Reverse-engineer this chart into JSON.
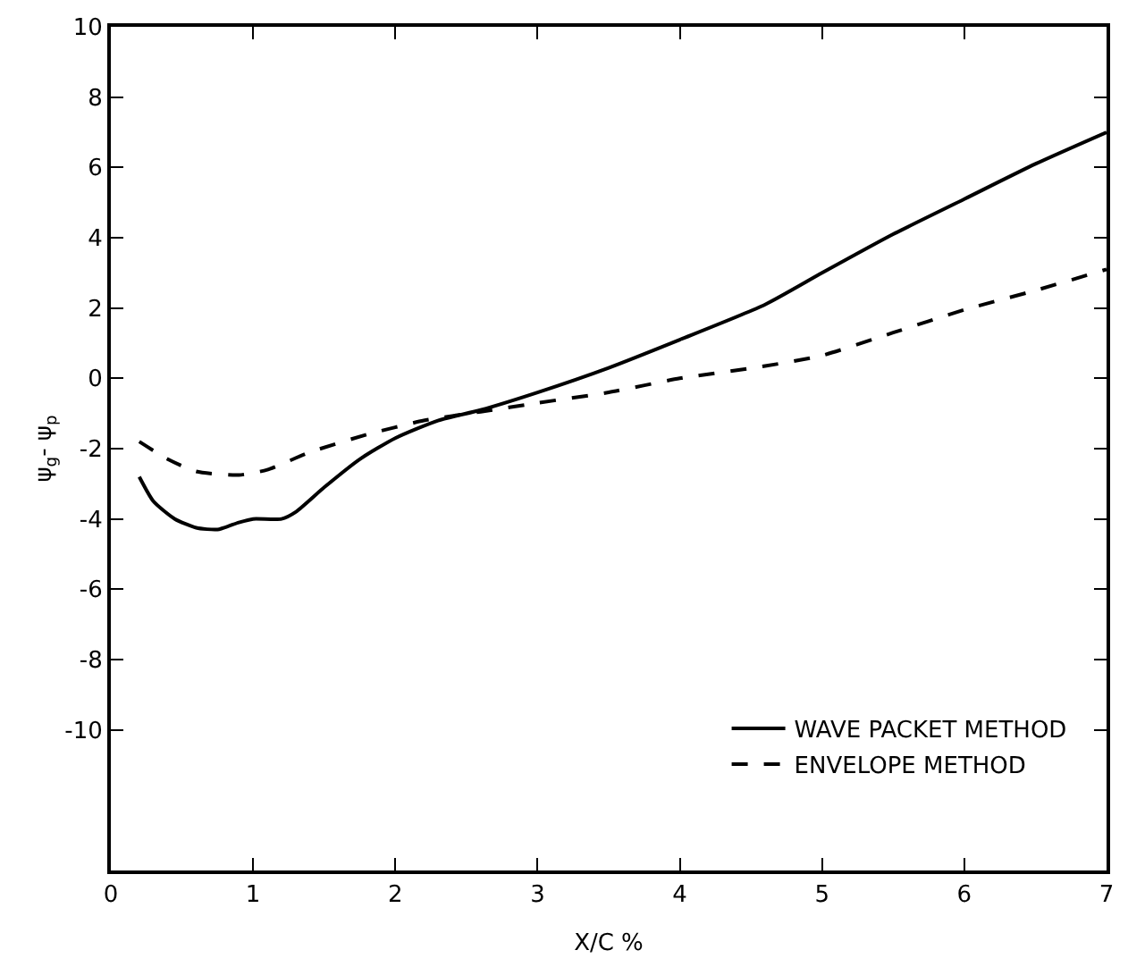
{
  "chart_data": {
    "type": "line",
    "xlabel": "X/C %",
    "ylabel": "ψ$_{g}$- ψ$_{p}$",
    "xlim": [
      0,
      7
    ],
    "xticks": [
      0,
      1,
      2,
      3,
      4,
      5,
      6,
      7
    ],
    "ylim": [
      -14,
      10
    ],
    "yticks": [
      10,
      8,
      6,
      4,
      2,
      0,
      -2,
      -4,
      -6,
      -8,
      -10
    ],
    "legend": "bottom right",
    "marker": "none",
    "series": [
      {
        "name": "WAVE PACKET METHOD",
        "color": "#000000",
        "line_style": "solid",
        "x": [
          0.2,
          0.3,
          0.45,
          0.6,
          0.75,
          0.9,
          1.0,
          1.2,
          1.3,
          1.5,
          1.75,
          2.0,
          2.3,
          2.6,
          3.0,
          3.5,
          4.0,
          4.6,
          5.0,
          5.5,
          6.0,
          6.5,
          7.0
        ],
        "values": [
          -2.8,
          -3.5,
          -4.0,
          -4.25,
          -4.3,
          -4.1,
          -4.0,
          -4.0,
          -3.8,
          -3.1,
          -2.3,
          -1.7,
          -1.2,
          -0.9,
          -0.4,
          0.3,
          1.1,
          2.1,
          3.0,
          4.1,
          5.1,
          6.1,
          7.0
        ]
      },
      {
        "name": "ENVELOPE METHOD",
        "color": "#000000",
        "line_style": "dashed",
        "x": [
          0.2,
          0.4,
          0.6,
          0.9,
          1.1,
          1.4,
          1.8,
          2.2,
          2.6,
          3.0,
          3.5,
          4.0,
          4.6,
          5.0,
          5.5,
          6.0,
          6.5,
          7.0
        ],
        "values": [
          -1.8,
          -2.3,
          -2.65,
          -2.75,
          -2.6,
          -2.1,
          -1.6,
          -1.2,
          -0.95,
          -0.7,
          -0.4,
          0.0,
          0.35,
          0.65,
          1.3,
          1.95,
          2.5,
          3.1
        ]
      }
    ]
  }
}
